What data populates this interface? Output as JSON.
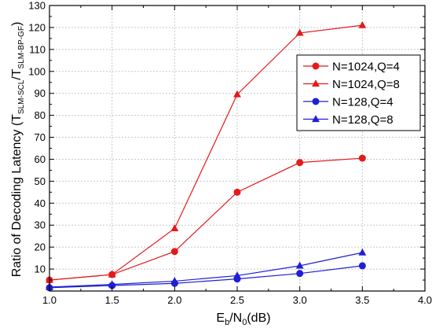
{
  "chart_data": {
    "type": "line",
    "xlabel": {
      "main": "E",
      "sub1": "b",
      "mid": "/N",
      "sub2": "0",
      "tail": "(dB)"
    },
    "ylabel": {
      "main": "Ratio of Decoding Latency (T",
      "sub1": "SLM-SCL",
      "mid": "/T",
      "sub2": "SLM-BP-GF",
      "tail": ")"
    },
    "xlim": [
      1.0,
      4.0
    ],
    "ylim": [
      0,
      130
    ],
    "xticks": [
      1.0,
      1.5,
      2.0,
      2.5,
      3.0,
      3.5,
      4.0
    ],
    "xtick_labels": [
      "1.0",
      "1.5",
      "2.0",
      "2.5",
      "3.0",
      "3.5",
      "4.0"
    ],
    "yticks": [
      10,
      20,
      30,
      40,
      50,
      60,
      70,
      80,
      90,
      100,
      110,
      120,
      130
    ],
    "ytick_labels": [
      "10",
      "20",
      "30",
      "40",
      "50",
      "60",
      "70",
      "80",
      "90",
      "100",
      "110",
      "120",
      "130"
    ],
    "legend_position": "top-right",
    "series": [
      {
        "name": "N=1024,Q=4",
        "color": "#e41a1c",
        "marker": "circle",
        "x": [
          1.0,
          1.5,
          2.0,
          2.5,
          3.0,
          3.5
        ],
        "values": [
          5,
          7.5,
          18,
          45,
          58.5,
          60.5
        ]
      },
      {
        "name": "N=1024,Q=8",
        "color": "#e41a1c",
        "marker": "triangle",
        "x": [
          1.0,
          1.5,
          2.0,
          2.5,
          3.0,
          3.5
        ],
        "values": [
          5,
          7.5,
          28.5,
          89.5,
          117.5,
          121
        ]
      },
      {
        "name": "N=128,Q=4",
        "color": "#1f1fd6",
        "marker": "circle",
        "x": [
          1.0,
          1.5,
          2.0,
          2.5,
          3.0,
          3.5
        ],
        "values": [
          1.5,
          2.5,
          3.5,
          5.5,
          8,
          11.5
        ]
      },
      {
        "name": "N=128,Q=8",
        "color": "#1f1fd6",
        "marker": "triangle",
        "x": [
          1.0,
          1.5,
          2.0,
          2.5,
          3.0,
          3.5
        ],
        "values": [
          1.8,
          3,
          4.5,
          7,
          11.5,
          17.5
        ]
      }
    ]
  }
}
